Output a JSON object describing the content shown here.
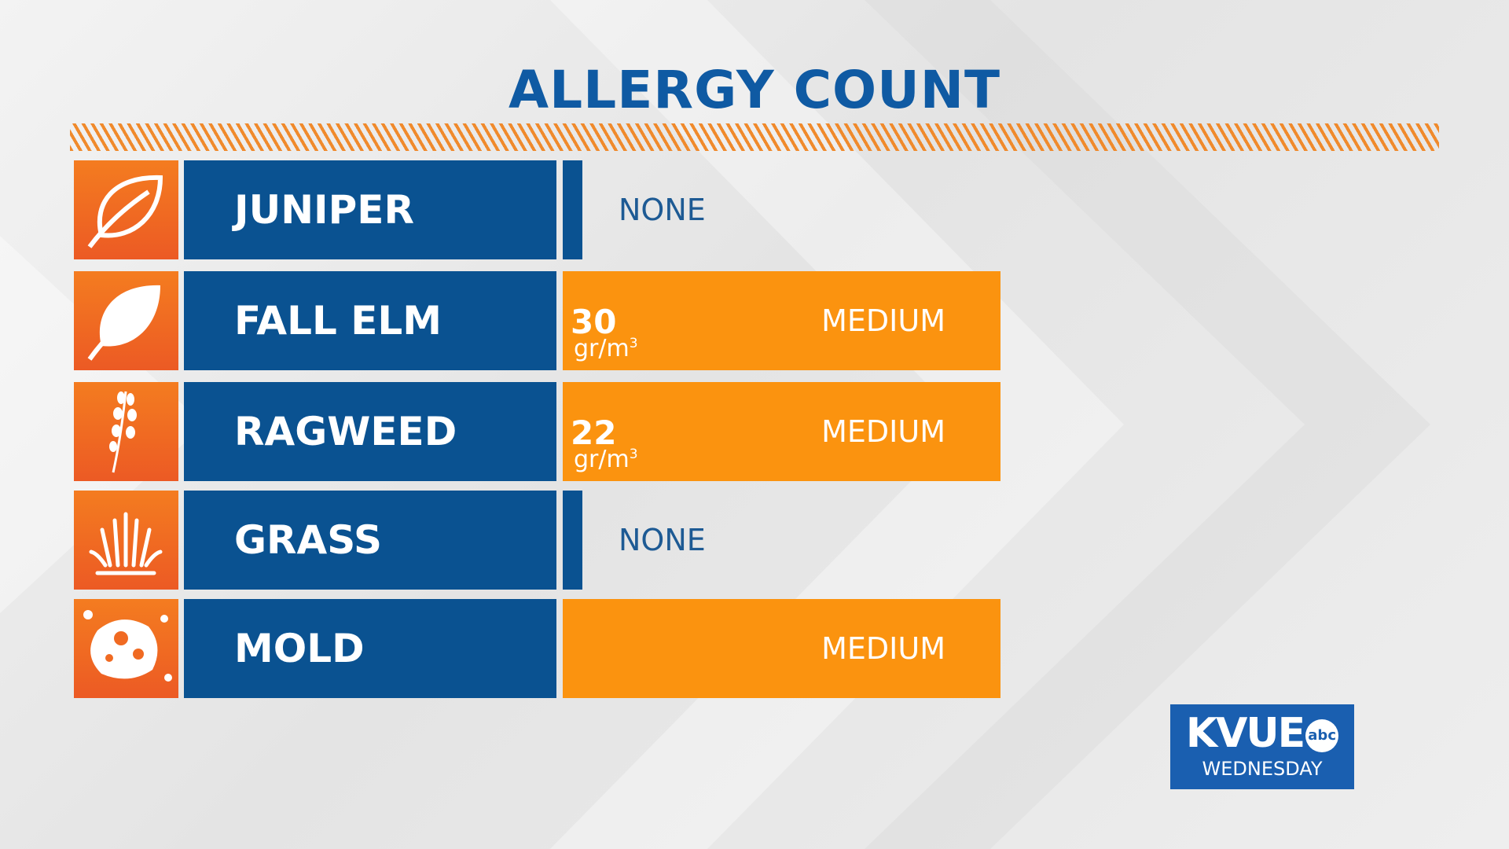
{
  "header": {
    "title": "ALLERGY COUNT"
  },
  "rows": [
    {
      "name": "JUNIPER",
      "level": "NONE"
    },
    {
      "name": "FALL ELM",
      "count": 30,
      "unit": "gr/m",
      "unit_power": "3",
      "level": "MEDIUM"
    },
    {
      "name": "RAGWEED",
      "count": 22,
      "unit": "gr/m",
      "unit_power": "3",
      "level": "MEDIUM"
    },
    {
      "name": "GRASS",
      "level": "NONE"
    },
    {
      "name": "MOLD",
      "level": "MEDIUM"
    }
  ],
  "logo": {
    "brand": "KVUE",
    "network": "abc",
    "day": "WEDNESDAY"
  }
}
